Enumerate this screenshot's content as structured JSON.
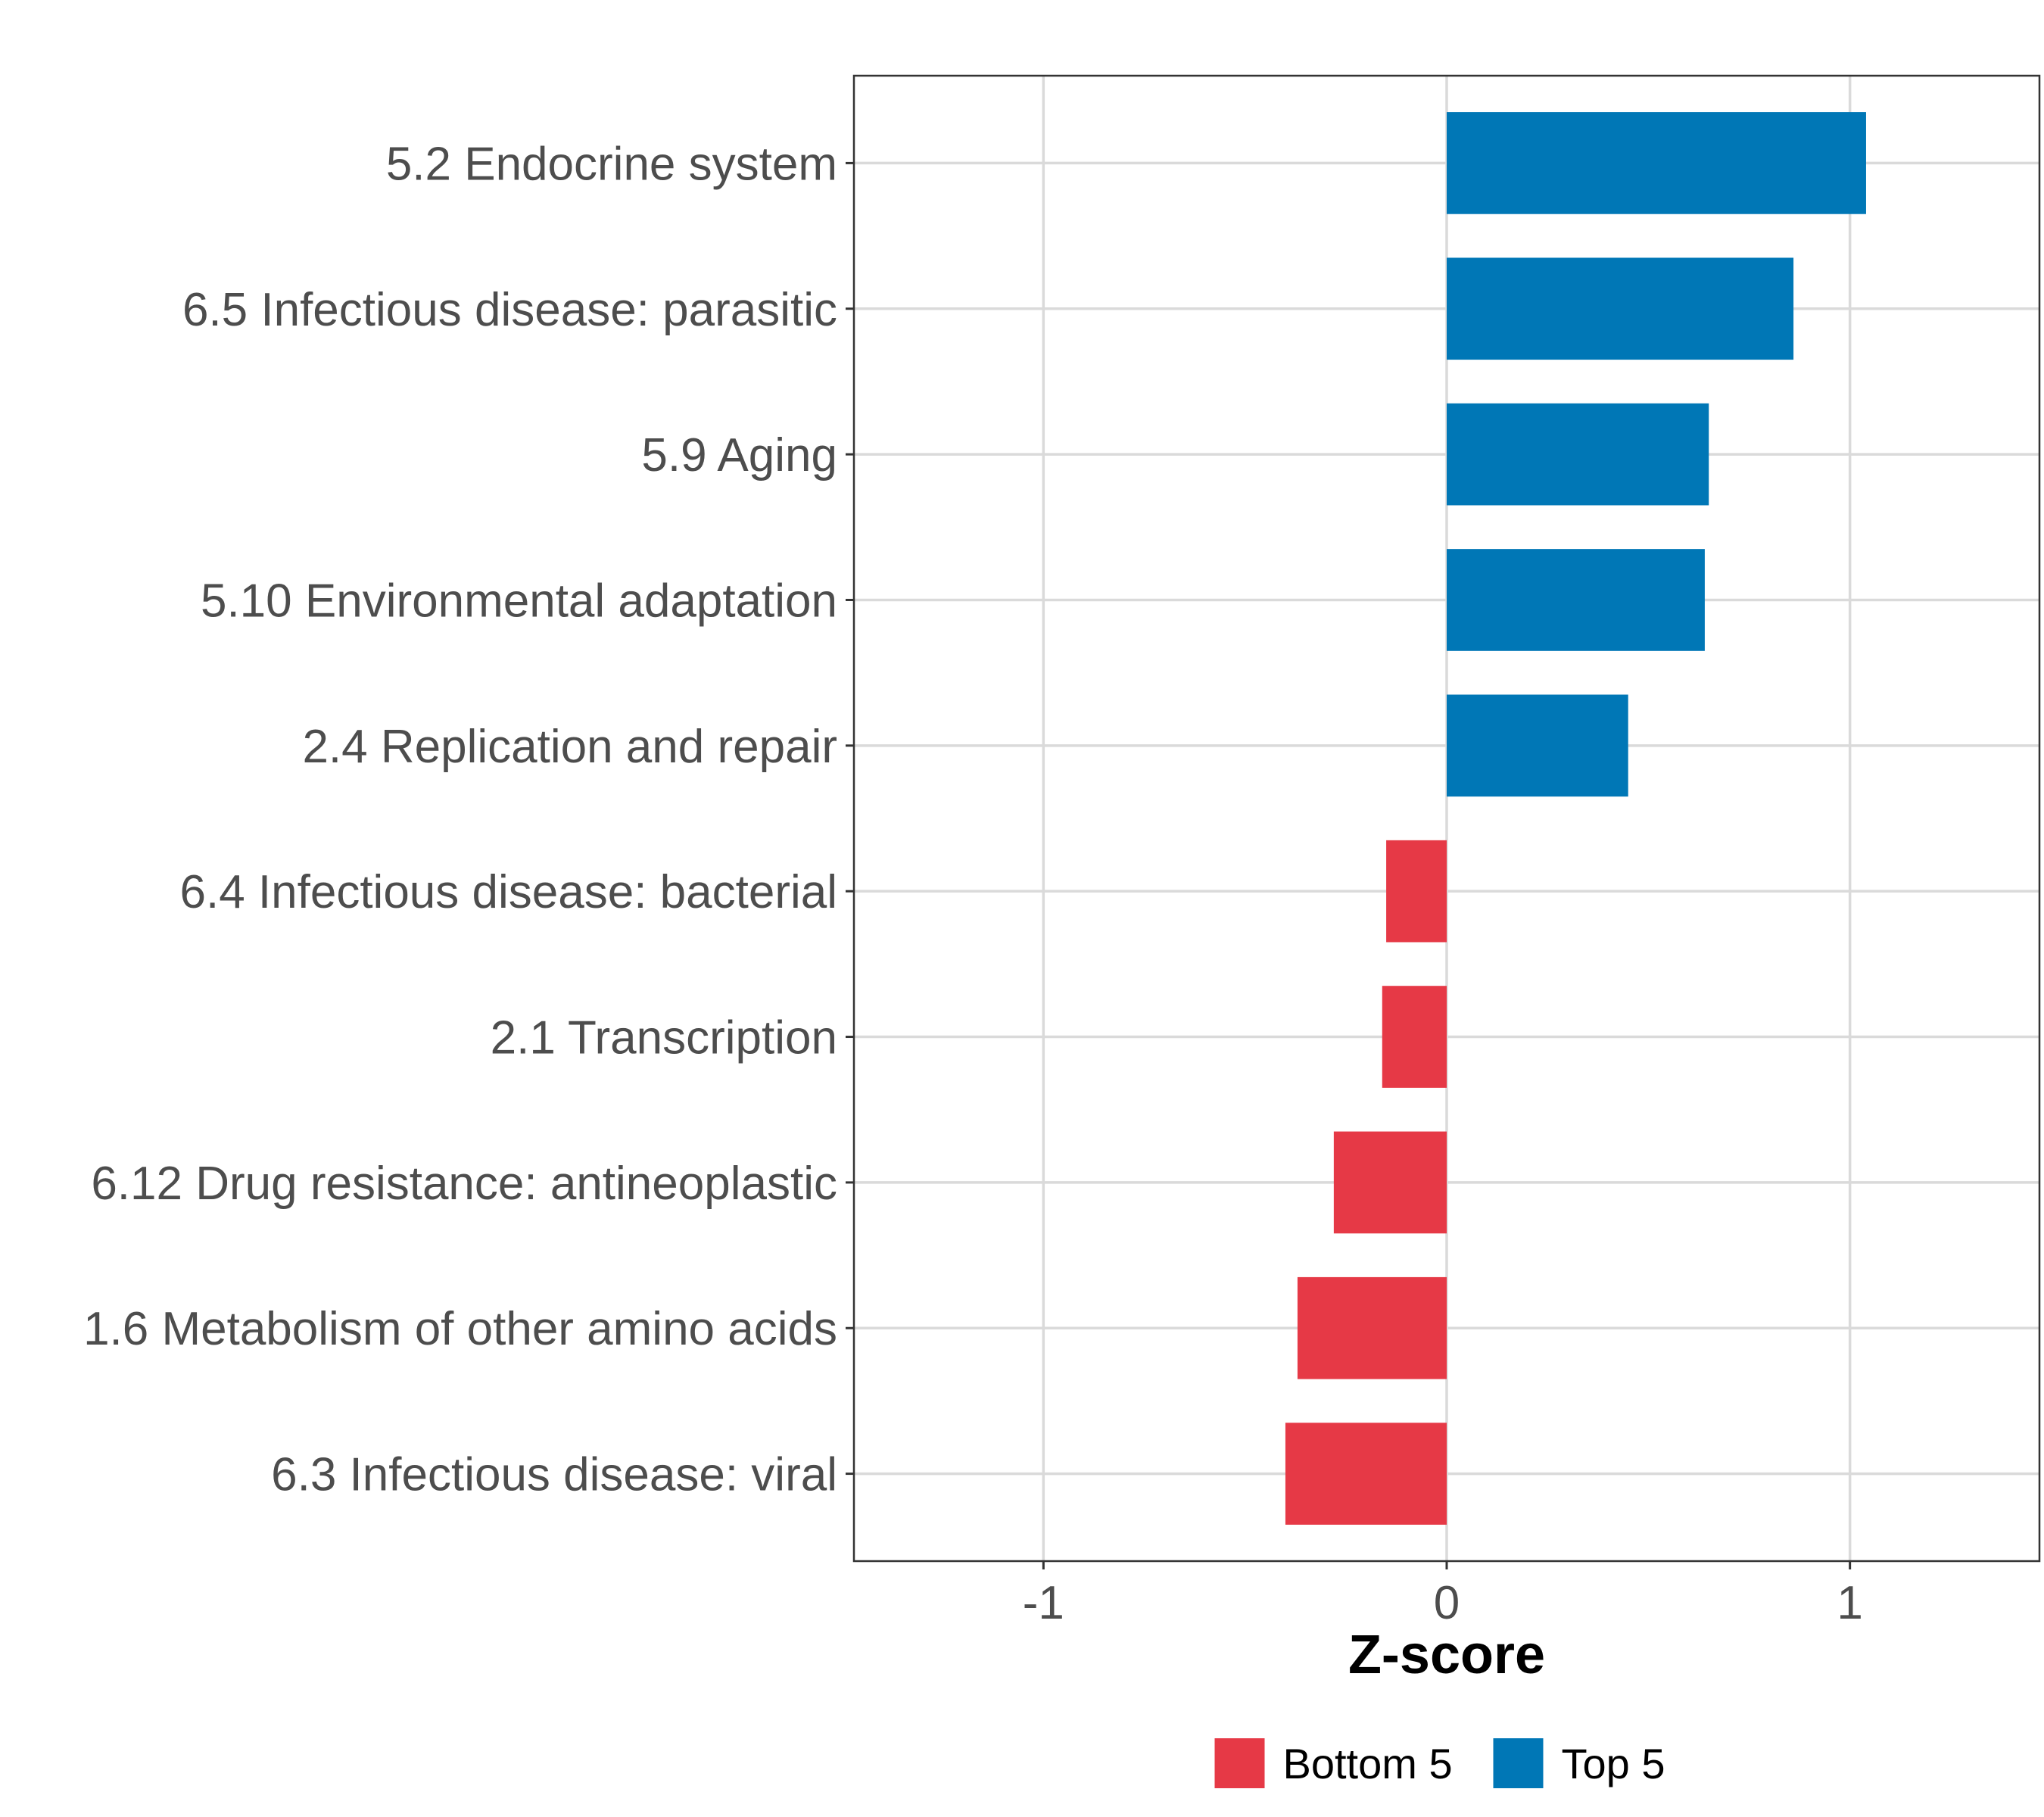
{
  "chart_data": {
    "type": "bar",
    "orientation": "horizontal",
    "title": "",
    "xlabel": "Z-score",
    "ylabel": "",
    "xlim": [
      -1.47,
      1.47
    ],
    "xticks": [
      -1,
      0,
      1
    ],
    "xtick_labels": [
      "-1",
      "0",
      "1"
    ],
    "grid": true,
    "legend_position": "bottom",
    "categories": [
      "5.2 Endocrine system",
      "6.5 Infectious disease: parasitic",
      "5.9 Aging",
      "5.10 Environmental adaptation",
      "2.4 Replication and repair",
      "6.4 Infectious disease: bacterial",
      "2.1 Transcription",
      "6.12 Drug resistance: antineoplastic",
      "1.6 Metabolism of other amino acids",
      "6.3 Infectious disease: viral"
    ],
    "values": [
      1.04,
      0.86,
      0.65,
      0.64,
      0.45,
      -0.15,
      -0.16,
      -0.28,
      -0.37,
      -0.4
    ],
    "groups": [
      "Top 5",
      "Top 5",
      "Top 5",
      "Top 5",
      "Top 5",
      "Bottom 5",
      "Bottom 5",
      "Bottom 5",
      "Bottom 5",
      "Bottom 5"
    ],
    "legend": [
      {
        "name": "Bottom 5",
        "color": "#e63946"
      },
      {
        "name": "Top 5",
        "color": "#0077b6"
      }
    ]
  }
}
